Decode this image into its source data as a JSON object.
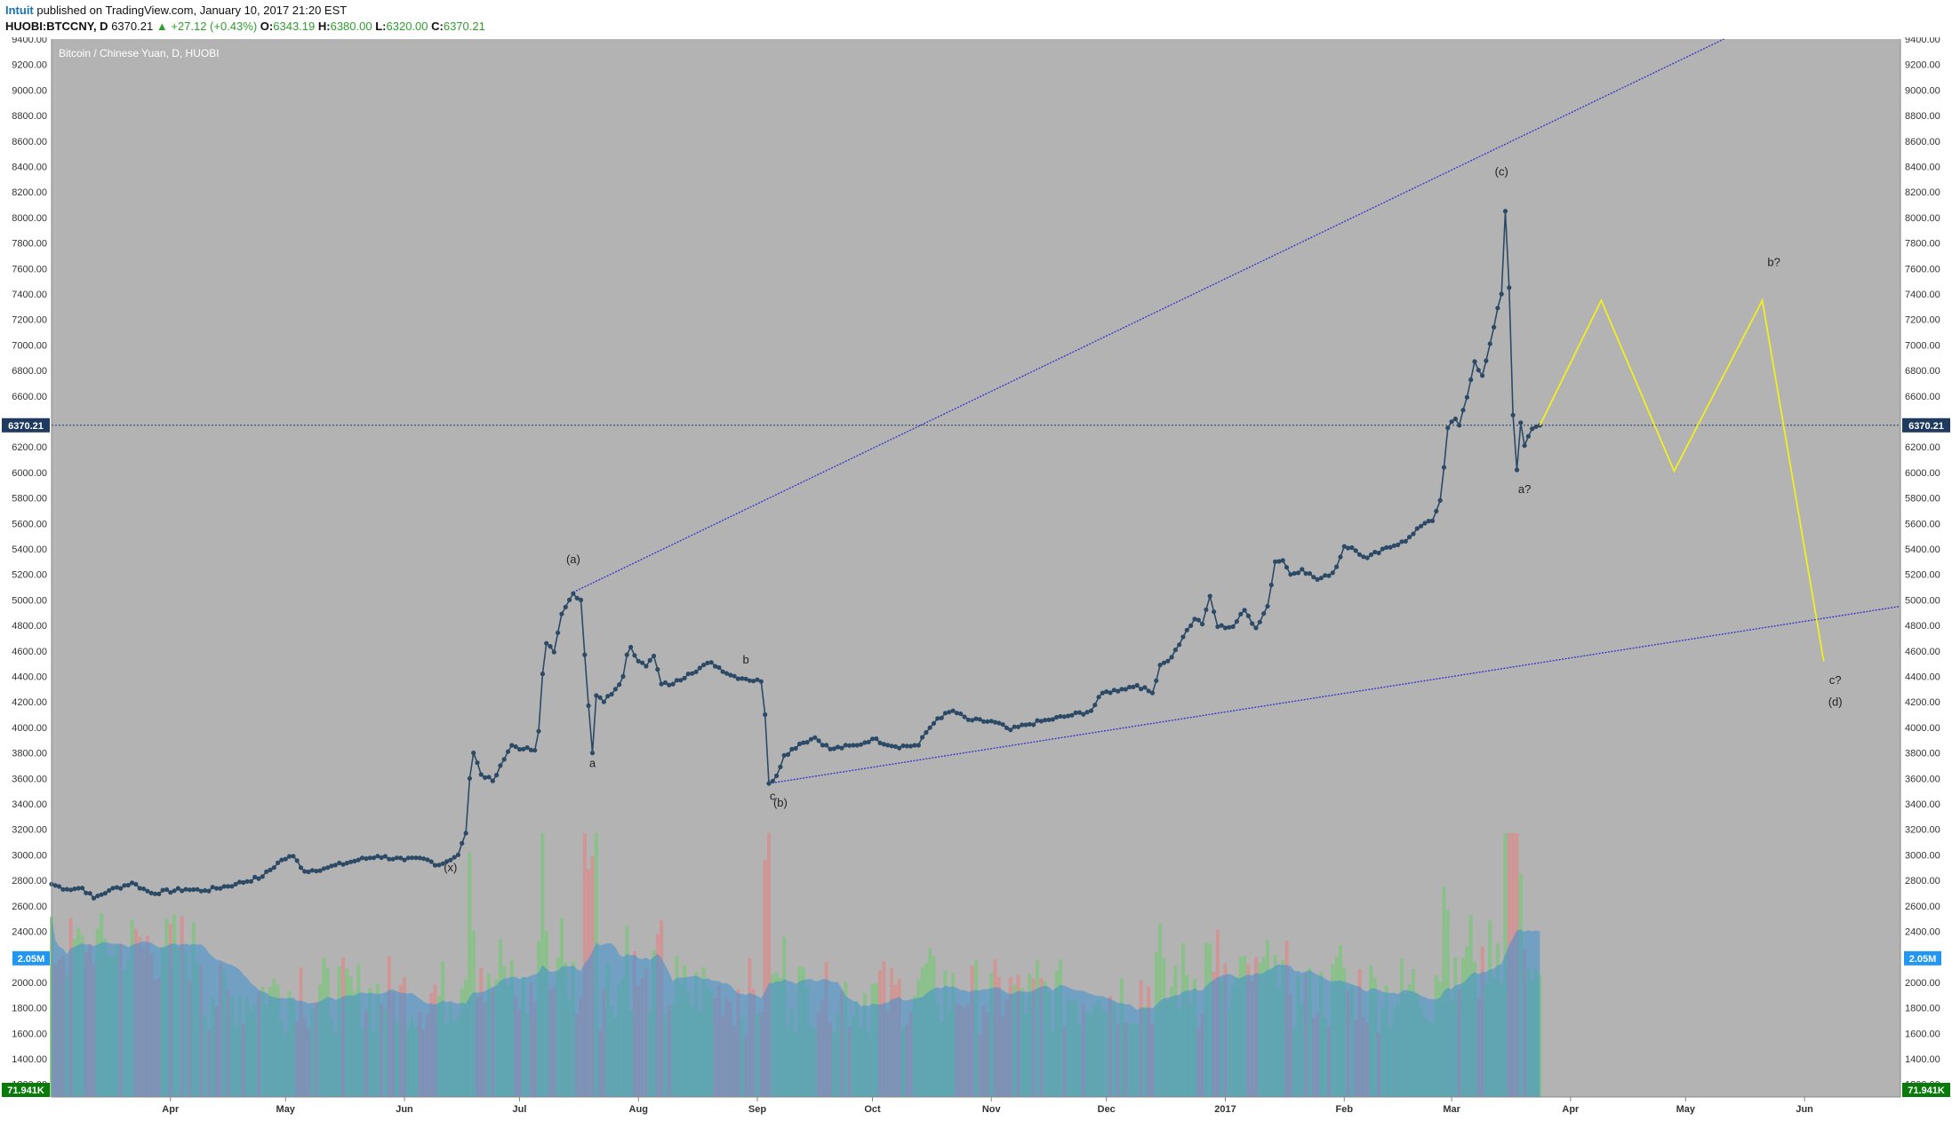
{
  "header": {
    "author": "Intuit",
    "published": "published on TradingView.com, January 10, 2017 21:20 EST",
    "symbol": "HUOBI:BTCCNY, D",
    "last": "6370.21",
    "change": "+27.12 (+0.43%)",
    "open_label": "O:",
    "open": "6343.19",
    "high_label": "H:",
    "high": "6380.00",
    "low_label": "L:",
    "low": "6320.00",
    "close_label": "C:",
    "close": "6370.21"
  },
  "chart_data": {
    "type": "line",
    "title": "Bitcoin / Chinese Yuan, D, HUOBI",
    "colors": {
      "plot_bg": "#b3b3b3",
      "price": "#2c4a66",
      "volume": "#3d8fd0",
      "volume_up": "#7cc47c",
      "volume_down": "#d98c8c",
      "channel": "#3333cc",
      "projection": "#f0f020",
      "price_tag": "#1e3a5f",
      "volume_tag": "#2196f3",
      "volume_min_tag": "#0a7a0a"
    },
    "ylim": [
      1100,
      9400
    ],
    "y_ticks": [
      "1200.00",
      "1400.00",
      "1600.00",
      "1800.00",
      "2000.00",
      "2200.00",
      "2400.00",
      "2600.00",
      "2800.00",
      "3000.00",
      "3200.00",
      "3400.00",
      "3600.00",
      "3800.00",
      "4000.00",
      "4200.00",
      "4400.00",
      "4600.00",
      "4800.00",
      "5000.00",
      "5200.00",
      "5400.00",
      "5600.00",
      "5800.00",
      "6000.00",
      "6200.00",
      "6400.00",
      "6600.00",
      "6800.00",
      "7000.00",
      "7200.00",
      "7400.00",
      "7600.00",
      "7800.00",
      "8000.00",
      "8200.00",
      "8400.00",
      "8600.00",
      "8800.00",
      "9000.00",
      "9200.00",
      "9400.00"
    ],
    "x_ticks": [
      {
        "label": "Apr",
        "date": "2016-04-01"
      },
      {
        "label": "May",
        "date": "2016-05-01"
      },
      {
        "label": "Jun",
        "date": "2016-06-01"
      },
      {
        "label": "Jul",
        "date": "2016-07-01"
      },
      {
        "label": "Aug",
        "date": "2016-08-01"
      },
      {
        "label": "Sep",
        "date": "2016-09-01"
      },
      {
        "label": "Oct",
        "date": "2016-10-01"
      },
      {
        "label": "Nov",
        "date": "2016-11-01"
      },
      {
        "label": "Dec",
        "date": "2016-12-01"
      },
      {
        "label": "2017",
        "date": "2017-01-01"
      },
      {
        "label": "Feb",
        "date": "2017-02-01"
      },
      {
        "label": "Mar",
        "date": "2017-03-01"
      },
      {
        "label": "Apr",
        "date": "2017-04-01"
      },
      {
        "label": "May",
        "date": "2017-05-01"
      },
      {
        "label": "Jun",
        "date": "2017-06-01"
      }
    ],
    "xlim": [
      "2016-03-01",
      "2017-06-26"
    ],
    "current_price": 6370.21,
    "current_price_label": "6370.21",
    "volume_last_label": "2.05M",
    "volume_min_label": "71.941K",
    "volume_ylim": [
      0,
      4200000
    ],
    "price_keypoints": [
      [
        "2016-03-01",
        2770
      ],
      [
        "2016-03-05",
        2730
      ],
      [
        "2016-03-09",
        2740
      ],
      [
        "2016-03-12",
        2660
      ],
      [
        "2016-03-16",
        2720
      ],
      [
        "2016-03-22",
        2780
      ],
      [
        "2016-03-27",
        2700
      ],
      [
        "2016-04-05",
        2730
      ],
      [
        "2016-04-10",
        2720
      ],
      [
        "2016-04-18",
        2770
      ],
      [
        "2016-04-25",
        2830
      ],
      [
        "2016-04-30",
        2960
      ],
      [
        "2016-05-03",
        2990
      ],
      [
        "2016-05-06",
        2870
      ],
      [
        "2016-05-12",
        2900
      ],
      [
        "2016-05-20",
        2960
      ],
      [
        "2016-05-25",
        2990
      ],
      [
        "2016-06-01",
        2960
      ],
      [
        "2016-06-06",
        2970
      ],
      [
        "2016-06-10",
        2920
      ],
      [
        "2016-06-15",
        3000
      ],
      [
        "2016-06-17",
        3170
      ],
      [
        "2016-06-18",
        3600
      ],
      [
        "2016-06-19",
        3800
      ],
      [
        "2016-06-21",
        3630
      ],
      [
        "2016-06-24",
        3580
      ],
      [
        "2016-06-26",
        3700
      ],
      [
        "2016-06-29",
        3860
      ],
      [
        "2016-07-02",
        3830
      ],
      [
        "2016-07-05",
        3820
      ],
      [
        "2016-07-06",
        3970
      ],
      [
        "2016-07-07",
        4420
      ],
      [
        "2016-07-08",
        4660
      ],
      [
        "2016-07-10",
        4590
      ],
      [
        "2016-07-12",
        4890
      ],
      [
        "2016-07-14",
        5000
      ],
      [
        "2016-07-15",
        5050
      ],
      [
        "2016-07-17",
        5000
      ],
      [
        "2016-07-18",
        4570
      ],
      [
        "2016-07-19",
        4170
      ],
      [
        "2016-07-20",
        3800
      ],
      [
        "2016-07-21",
        4250
      ],
      [
        "2016-07-23",
        4200
      ],
      [
        "2016-07-26",
        4300
      ],
      [
        "2016-07-28",
        4400
      ],
      [
        "2016-07-29",
        4570
      ],
      [
        "2016-07-30",
        4630
      ],
      [
        "2016-08-01",
        4520
      ],
      [
        "2016-08-03",
        4480
      ],
      [
        "2016-08-05",
        4560
      ],
      [
        "2016-08-07",
        4340
      ],
      [
        "2016-08-10",
        4340
      ],
      [
        "2016-08-14",
        4420
      ],
      [
        "2016-08-20",
        4510
      ],
      [
        "2016-08-25",
        4410
      ],
      [
        "2016-08-29",
        4380
      ],
      [
        "2016-09-02",
        4360
      ],
      [
        "2016-09-03",
        4100
      ],
      [
        "2016-09-04",
        3560
      ],
      [
        "2016-09-06",
        3620
      ],
      [
        "2016-09-08",
        3780
      ],
      [
        "2016-09-12",
        3870
      ],
      [
        "2016-09-16",
        3920
      ],
      [
        "2016-09-20",
        3830
      ],
      [
        "2016-09-27",
        3860
      ],
      [
        "2016-10-01",
        3910
      ],
      [
        "2016-10-07",
        3850
      ],
      [
        "2016-10-13",
        3860
      ],
      [
        "2016-10-15",
        3960
      ],
      [
        "2016-10-18",
        4070
      ],
      [
        "2016-10-22",
        4130
      ],
      [
        "2016-10-26",
        4060
      ],
      [
        "2016-11-02",
        4040
      ],
      [
        "2016-11-06",
        3980
      ],
      [
        "2016-11-10",
        4020
      ],
      [
        "2016-11-16",
        4060
      ],
      [
        "2016-11-21",
        4090
      ],
      [
        "2016-11-27",
        4130
      ],
      [
        "2016-11-30",
        4270
      ],
      [
        "2016-12-05",
        4300
      ],
      [
        "2016-12-09",
        4330
      ],
      [
        "2016-12-13",
        4270
      ],
      [
        "2016-12-15",
        4490
      ],
      [
        "2016-12-18",
        4550
      ],
      [
        "2016-12-21",
        4710
      ],
      [
        "2016-12-24",
        4850
      ],
      [
        "2016-12-26",
        4810
      ],
      [
        "2016-12-28",
        5030
      ],
      [
        "2016-12-30",
        4790
      ],
      [
        "2017-01-03",
        4790
      ],
      [
        "2017-01-06",
        4920
      ],
      [
        "2017-01-09",
        4780
      ],
      [
        "2017-01-12",
        4950
      ],
      [
        "2017-01-14",
        5300
      ],
      [
        "2017-01-16",
        5310
      ],
      [
        "2017-01-18",
        5200
      ],
      [
        "2017-01-21",
        5240
      ],
      [
        "2017-01-25",
        5160
      ],
      [
        "2017-01-28",
        5190
      ],
      [
        "2017-01-30",
        5260
      ],
      [
        "2017-02-01",
        5420
      ],
      [
        "2017-02-03",
        5410
      ],
      [
        "2017-02-07",
        5330
      ],
      [
        "2017-02-11",
        5400
      ],
      [
        "2017-02-17",
        5460
      ],
      [
        "2017-02-20",
        5560
      ],
      [
        "2017-02-24",
        5620
      ],
      [
        "2017-02-26",
        5780
      ],
      [
        "2017-02-27",
        6040
      ],
      [
        "2017-02-28",
        6350
      ],
      [
        "2017-03-02",
        6420
      ],
      [
        "2017-03-03",
        6370
      ],
      [
        "2017-03-05",
        6590
      ],
      [
        "2017-03-07",
        6870
      ],
      [
        "2017-03-09",
        6760
      ],
      [
        "2017-03-11",
        7010
      ],
      [
        "2017-03-13",
        7290
      ],
      [
        "2017-03-14",
        7400
      ],
      [
        "2017-03-15",
        8050
      ],
      [
        "2017-03-16",
        7450
      ],
      [
        "2017-03-17",
        6450
      ],
      [
        "2017-03-18",
        6020
      ],
      [
        "2017-03-19",
        6390
      ],
      [
        "2017-03-20",
        6210
      ],
      [
        "2017-03-22",
        6343
      ],
      [
        "2017-03-24",
        6370
      ]
    ],
    "channel_lines": [
      {
        "from": [
          "2016-07-15",
          5060
        ],
        "to": [
          "2017-05-11",
          9400
        ]
      },
      {
        "from": [
          "2016-09-04",
          3560
        ],
        "to": [
          "2017-06-26",
          4950
        ]
      }
    ],
    "projection": [
      [
        "2017-03-24",
        6370
      ],
      [
        "2017-04-09",
        7350
      ],
      [
        "2017-04-28",
        6010
      ],
      [
        "2017-05-21",
        7350
      ],
      [
        "2017-06-06",
        4520
      ]
    ],
    "annotations": [
      {
        "text": "(x)",
        "date": "2016-06-13",
        "y": 2870
      },
      {
        "text": "(a)",
        "date": "2016-07-15",
        "y": 5290
      },
      {
        "text": "a",
        "date": "2016-07-20",
        "y": 3690
      },
      {
        "text": "b",
        "date": "2016-08-29",
        "y": 4500
      },
      {
        "text": "c",
        "date": "2016-09-05",
        "y": 3430
      },
      {
        "text": "(b)",
        "date": "2016-09-07",
        "y": 3380
      },
      {
        "text": "(c)",
        "date": "2017-03-14",
        "y": 8330
      },
      {
        "text": "a?",
        "date": "2017-03-20",
        "y": 5840
      },
      {
        "text": "b?",
        "date": "2017-05-24",
        "y": 7620
      },
      {
        "text": "c?",
        "date": "2017-06-09",
        "y": 4340
      },
      {
        "text": "(d)",
        "date": "2017-06-09",
        "y": 4170
      }
    ]
  }
}
